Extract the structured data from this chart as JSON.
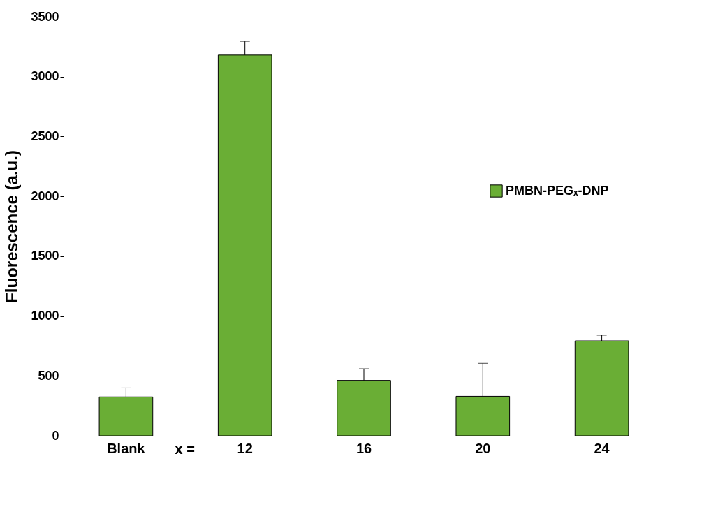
{
  "chart_data": {
    "type": "bar",
    "ylabel": "Fluorescence (a.u.)",
    "categories": [
      "Blank",
      "12",
      "16",
      "20",
      "24"
    ],
    "series": [
      {
        "name": "PMBN-PEGₓ-DNP",
        "color": "#6aae35",
        "values": [
          325,
          3180,
          463,
          330,
          793
        ],
        "errors": [
          [
            325,
            400
          ],
          [
            3180,
            3295
          ],
          [
            463,
            560
          ],
          [
            330,
            605
          ],
          [
            793,
            840
          ]
        ]
      }
    ],
    "annotations": [
      "x ="
    ],
    "ylim": [
      0,
      3500
    ],
    "yticks": [
      0,
      500,
      1000,
      1500,
      2000,
      2500,
      3000,
      3500
    ],
    "grid": false,
    "legend": "right"
  }
}
